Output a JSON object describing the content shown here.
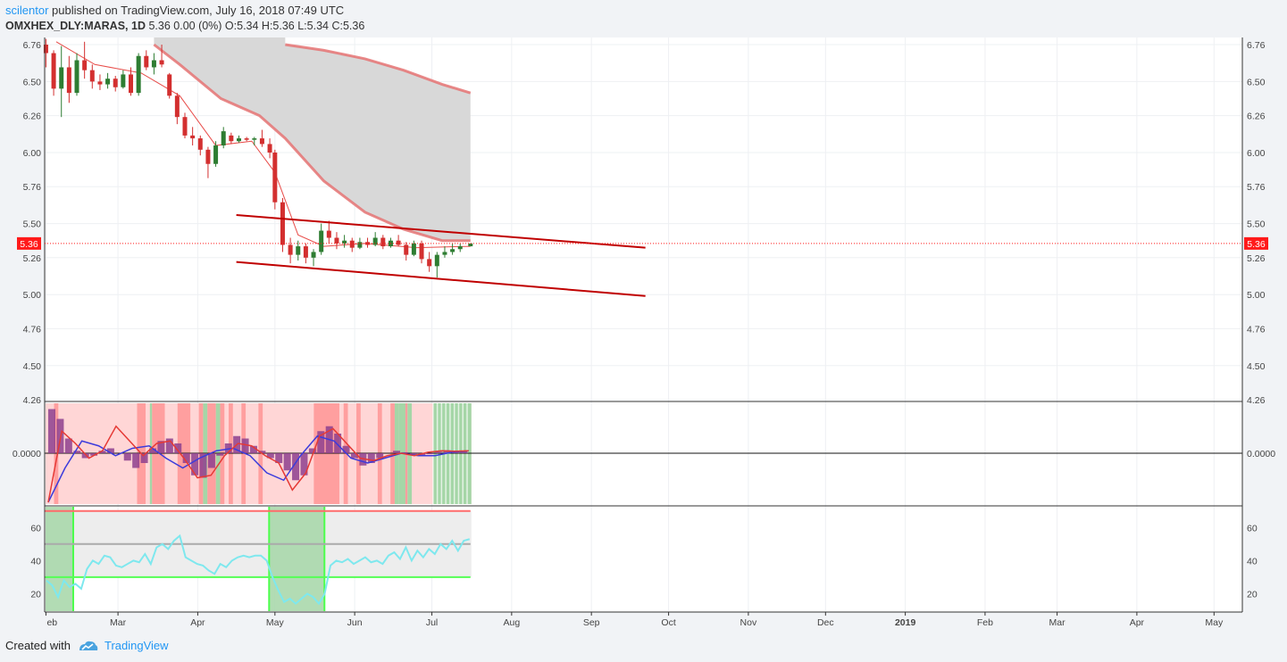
{
  "header": {
    "author": "scilentor",
    "published_text": "published on TradingView.com, July 16, 2018 07:49 UTC",
    "symbol": "OMXHEX_DLY:MARAS, 1D",
    "quote": "5.36 0.00 (0%) O:5.34 H:5.36 L:5.34 C:5.36"
  },
  "footer": {
    "created_with": "Created with",
    "brand": "TradingView"
  },
  "colors": {
    "up": "#2e7d32",
    "down": "#d32f2f",
    "channel": "#c00000",
    "ma_fast": "#e53935",
    "ma_slow": "#e57373",
    "cloud": "#d6d6d6",
    "macd_hist": "#8e3f8e",
    "signal_blue": "#3b3bdc",
    "rsi_line": "#7ee8ee",
    "price_tag": "#ff1a1a"
  },
  "chart_data": {
    "price": {
      "type": "candlestick",
      "ylim": [
        4.26,
        6.76
      ],
      "y_ticks": [
        "6.76",
        "6.50",
        "6.26",
        "6.00",
        "5.76",
        "5.50",
        "5.26",
        "5.00",
        "4.76",
        "4.50",
        "4.26"
      ],
      "y_tick_values": [
        6.76,
        6.5,
        6.26,
        6.0,
        5.76,
        5.5,
        5.26,
        5.0,
        4.76,
        4.5,
        4.26
      ],
      "last_price_label": "5.36",
      "last_price": 5.36,
      "candles": [
        {
          "d": "2018-02-01",
          "o": 6.76,
          "h": 6.8,
          "l": 6.6,
          "c": 6.7
        },
        {
          "d": "2018-02-04",
          "o": 6.7,
          "h": 6.72,
          "l": 6.4,
          "c": 6.45
        },
        {
          "d": "2018-02-07",
          "o": 6.45,
          "h": 6.75,
          "l": 6.25,
          "c": 6.6
        },
        {
          "d": "2018-02-10",
          "o": 6.6,
          "h": 6.68,
          "l": 6.35,
          "c": 6.42
        },
        {
          "d": "2018-02-13",
          "o": 6.42,
          "h": 6.7,
          "l": 6.4,
          "c": 6.65
        },
        {
          "d": "2018-02-16",
          "o": 6.65,
          "h": 6.78,
          "l": 6.52,
          "c": 6.58
        },
        {
          "d": "2018-02-19",
          "o": 6.58,
          "h": 6.62,
          "l": 6.45,
          "c": 6.5
        },
        {
          "d": "2018-02-22",
          "o": 6.5,
          "h": 6.55,
          "l": 6.44,
          "c": 6.48
        },
        {
          "d": "2018-02-25",
          "o": 6.48,
          "h": 6.56,
          "l": 6.45,
          "c": 6.52
        },
        {
          "d": "2018-02-28",
          "o": 6.52,
          "h": 6.54,
          "l": 6.43,
          "c": 6.46
        },
        {
          "d": "2018-03-03",
          "o": 6.46,
          "h": 6.58,
          "l": 6.45,
          "c": 6.55
        },
        {
          "d": "2018-03-06",
          "o": 6.55,
          "h": 6.6,
          "l": 6.4,
          "c": 6.42
        },
        {
          "d": "2018-03-09",
          "o": 6.42,
          "h": 6.7,
          "l": 6.4,
          "c": 6.68
        },
        {
          "d": "2018-03-12",
          "o": 6.68,
          "h": 6.72,
          "l": 6.58,
          "c": 6.6
        },
        {
          "d": "2018-03-15",
          "o": 6.6,
          "h": 6.7,
          "l": 6.55,
          "c": 6.65
        },
        {
          "d": "2018-03-18",
          "o": 6.65,
          "h": 6.76,
          "l": 6.6,
          "c": 6.62
        },
        {
          "d": "2018-03-21",
          "o": 6.55,
          "h": 6.56,
          "l": 6.38,
          "c": 6.4
        },
        {
          "d": "2018-03-24",
          "o": 6.4,
          "h": 6.42,
          "l": 6.2,
          "c": 6.25
        },
        {
          "d": "2018-03-27",
          "o": 6.25,
          "h": 6.28,
          "l": 6.1,
          "c": 6.12
        },
        {
          "d": "2018-03-30",
          "o": 6.12,
          "h": 6.18,
          "l": 6.05,
          "c": 6.1
        },
        {
          "d": "2018-04-02",
          "o": 6.1,
          "h": 6.12,
          "l": 5.98,
          "c": 6.02
        },
        {
          "d": "2018-04-05",
          "o": 6.02,
          "h": 6.04,
          "l": 5.82,
          "c": 5.92
        },
        {
          "d": "2018-04-08",
          "o": 5.92,
          "h": 6.08,
          "l": 5.9,
          "c": 6.05
        },
        {
          "d": "2018-04-11",
          "o": 6.05,
          "h": 6.18,
          "l": 6.03,
          "c": 6.15
        },
        {
          "d": "2018-04-14",
          "o": 6.12,
          "h": 6.14,
          "l": 6.06,
          "c": 6.08
        },
        {
          "d": "2018-04-17",
          "o": 6.08,
          "h": 6.12,
          "l": 6.07,
          "c": 6.1
        },
        {
          "d": "2018-04-20",
          "o": 6.1,
          "h": 6.11,
          "l": 6.08,
          "c": 6.09
        },
        {
          "d": "2018-04-23",
          "o": 6.09,
          "h": 6.11,
          "l": 6.05,
          "c": 6.1
        },
        {
          "d": "2018-04-26",
          "o": 6.1,
          "h": 6.16,
          "l": 6.04,
          "c": 6.06
        },
        {
          "d": "2018-04-29",
          "o": 6.06,
          "h": 6.1,
          "l": 5.96,
          "c": 6.0
        },
        {
          "d": "2018-05-01",
          "o": 6.0,
          "h": 6.02,
          "l": 5.6,
          "c": 5.65
        },
        {
          "d": "2018-05-04",
          "o": 5.65,
          "h": 5.68,
          "l": 5.3,
          "c": 5.35
        },
        {
          "d": "2018-05-07",
          "o": 5.35,
          "h": 5.4,
          "l": 5.22,
          "c": 5.28
        },
        {
          "d": "2018-05-10",
          "o": 5.28,
          "h": 5.38,
          "l": 5.24,
          "c": 5.34
        },
        {
          "d": "2018-05-13",
          "o": 5.34,
          "h": 5.36,
          "l": 5.22,
          "c": 5.26
        },
        {
          "d": "2018-05-16",
          "o": 5.26,
          "h": 5.32,
          "l": 5.2,
          "c": 5.3
        },
        {
          "d": "2018-05-19",
          "o": 5.3,
          "h": 5.5,
          "l": 5.28,
          "c": 5.45
        },
        {
          "d": "2018-05-22",
          "o": 5.45,
          "h": 5.52,
          "l": 5.36,
          "c": 5.4
        },
        {
          "d": "2018-05-25",
          "o": 5.4,
          "h": 5.44,
          "l": 5.32,
          "c": 5.36
        },
        {
          "d": "2018-05-28",
          "o": 5.36,
          "h": 5.42,
          "l": 5.33,
          "c": 5.38
        },
        {
          "d": "2018-05-31",
          "o": 5.38,
          "h": 5.4,
          "l": 5.3,
          "c": 5.33
        },
        {
          "d": "2018-06-03",
          "o": 5.33,
          "h": 5.4,
          "l": 5.32,
          "c": 5.37
        },
        {
          "d": "2018-06-06",
          "o": 5.37,
          "h": 5.4,
          "l": 5.33,
          "c": 5.35
        },
        {
          "d": "2018-06-09",
          "o": 5.35,
          "h": 5.44,
          "l": 5.34,
          "c": 5.4
        },
        {
          "d": "2018-06-12",
          "o": 5.4,
          "h": 5.42,
          "l": 5.32,
          "c": 5.34
        },
        {
          "d": "2018-06-15",
          "o": 5.34,
          "h": 5.4,
          "l": 5.33,
          "c": 5.38
        },
        {
          "d": "2018-06-18",
          "o": 5.38,
          "h": 5.42,
          "l": 5.34,
          "c": 5.35
        },
        {
          "d": "2018-06-21",
          "o": 5.35,
          "h": 5.37,
          "l": 5.24,
          "c": 5.28
        },
        {
          "d": "2018-06-24",
          "o": 5.28,
          "h": 5.38,
          "l": 5.27,
          "c": 5.36
        },
        {
          "d": "2018-06-27",
          "o": 5.36,
          "h": 5.38,
          "l": 5.22,
          "c": 5.25
        },
        {
          "d": "2018-06-30",
          "o": 5.25,
          "h": 5.3,
          "l": 5.16,
          "c": 5.2
        },
        {
          "d": "2018-07-03",
          "o": 5.2,
          "h": 5.3,
          "l": 5.12,
          "c": 5.28
        },
        {
          "d": "2018-07-06",
          "o": 5.28,
          "h": 5.34,
          "l": 5.26,
          "c": 5.3
        },
        {
          "d": "2018-07-09",
          "o": 5.3,
          "h": 5.36,
          "l": 5.28,
          "c": 5.32
        },
        {
          "d": "2018-07-12",
          "o": 5.32,
          "h": 5.36,
          "l": 5.3,
          "c": 5.34
        },
        {
          "d": "2018-07-16",
          "o": 5.34,
          "h": 5.36,
          "l": 5.34,
          "c": 5.36
        }
      ],
      "ma_fast": [
        [
          "2018-02-05",
          6.78
        ],
        [
          "2018-02-20",
          6.62
        ],
        [
          "2018-03-10",
          6.56
        ],
        [
          "2018-03-25",
          6.4
        ],
        [
          "2018-04-08",
          6.05
        ],
        [
          "2018-04-22",
          6.08
        ],
        [
          "2018-05-01",
          5.86
        ],
        [
          "2018-05-10",
          5.42
        ],
        [
          "2018-05-20",
          5.34
        ],
        [
          "2018-06-05",
          5.36
        ],
        [
          "2018-06-25",
          5.33
        ],
        [
          "2018-07-16",
          5.34
        ]
      ],
      "ma_slow": [
        [
          "2018-03-15",
          6.76
        ],
        [
          "2018-03-25",
          6.62
        ],
        [
          "2018-04-10",
          6.38
        ],
        [
          "2018-04-25",
          6.26
        ],
        [
          "2018-05-05",
          6.1
        ],
        [
          "2018-05-20",
          5.8
        ],
        [
          "2018-06-05",
          5.58
        ],
        [
          "2018-06-20",
          5.46
        ],
        [
          "2018-07-05",
          5.38
        ],
        [
          "2018-07-16",
          5.38
        ]
      ],
      "ma_long": [
        [
          "2018-05-05",
          6.76
        ],
        [
          "2018-05-20",
          6.72
        ],
        [
          "2018-06-05",
          6.66
        ],
        [
          "2018-06-20",
          6.58
        ],
        [
          "2018-07-05",
          6.48
        ],
        [
          "2018-07-16",
          6.42
        ]
      ],
      "channel_upper": [
        [
          "2018-04-16",
          5.56
        ],
        [
          "2018-09-22",
          5.33
        ]
      ],
      "channel_lower": [
        [
          "2018-04-16",
          5.23
        ],
        [
          "2018-09-22",
          4.99
        ]
      ]
    },
    "macd": {
      "zero_label": "0.0000",
      "hist": [
        0.9,
        0.7,
        0.3,
        0.05,
        -0.1,
        -0.05,
        0.05,
        0.1,
        0.0,
        -0.15,
        -0.3,
        -0.2,
        0.1,
        0.25,
        0.3,
        0.2,
        -0.2,
        -0.45,
        -0.5,
        -0.3,
        -0.05,
        0.2,
        0.35,
        0.3,
        0.15,
        0.05,
        -0.1,
        -0.2,
        -0.35,
        -0.55,
        -0.45,
        0.1,
        0.45,
        0.55,
        0.4,
        0.15,
        -0.1,
        -0.25,
        -0.2,
        -0.1,
        0.0,
        0.05,
        0.02,
        -0.03,
        -0.05,
        -0.02,
        0.03,
        0.06,
        0.05,
        0.04
      ],
      "line": [
        -1.0,
        0.45,
        0.2,
        -0.1,
        0.05,
        0.55,
        0.25,
        -0.05,
        0.2,
        0.25,
        -0.1,
        -0.5,
        -0.45,
        -0.05,
        0.2,
        0.15,
        -0.05,
        -0.2,
        -0.75,
        -0.4,
        0.35,
        0.5,
        0.2,
        -0.1,
        -0.15,
        -0.05,
        0.0,
        -0.05,
        0.02,
        0.05,
        0.04,
        0.05
      ],
      "signal": [
        -1.0,
        -0.3,
        0.25,
        0.15,
        -0.05,
        0.1,
        0.15,
        -0.1,
        -0.3,
        -0.1,
        0.05,
        0.1,
        -0.05,
        -0.4,
        -0.55,
        -0.05,
        0.35,
        0.25,
        -0.1,
        -0.2,
        -0.1,
        0.0,
        -0.05,
        -0.05,
        0.02,
        0.05
      ]
    },
    "rsi": {
      "ylim": [
        10,
        72
      ],
      "y_ticks": [
        "60",
        "40",
        "20"
      ],
      "y_tick_values": [
        60,
        40,
        20
      ],
      "upper": 70,
      "mid": 50,
      "lower": 30,
      "values": [
        28,
        25,
        18,
        28,
        24,
        26,
        23,
        35,
        40,
        38,
        43,
        42,
        37,
        36,
        38,
        40,
        39,
        44,
        38,
        48,
        50,
        47,
        52,
        55,
        42,
        40,
        38,
        37,
        34,
        32,
        38,
        36,
        40,
        42,
        43,
        42,
        43,
        43,
        40,
        30,
        22,
        15,
        17,
        14,
        17,
        20,
        18,
        14,
        20,
        37,
        40,
        39,
        41,
        38,
        40,
        42,
        39,
        40,
        38,
        43,
        45,
        41,
        48,
        40,
        46,
        42,
        47,
        44,
        50,
        47,
        52,
        46,
        52,
        53
      ]
    },
    "x_axis": {
      "labels": [
        "eb",
        "Mar",
        "Apr",
        "May",
        "Jun",
        "Jul",
        "Aug",
        "Sep",
        "Oct",
        "Nov",
        "Dec",
        "2019",
        "Feb",
        "Mar",
        "Apr",
        "May"
      ],
      "dates": [
        "2018-02-01",
        "2018-03-01",
        "2018-04-01",
        "2018-05-01",
        "2018-06-01",
        "2018-07-01",
        "2018-08-01",
        "2018-09-01",
        "2018-10-01",
        "2018-11-01",
        "2018-12-01",
        "2019-01-01",
        "2019-02-01",
        "2019-03-01",
        "2019-04-01",
        "2019-05-01"
      ],
      "range": [
        "2018-02-01",
        "2019-05-12"
      ]
    }
  }
}
